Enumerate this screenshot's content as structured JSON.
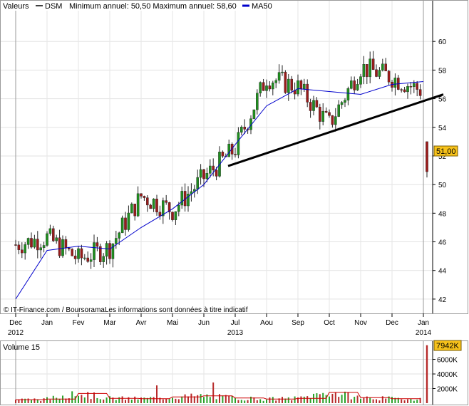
{
  "header": {
    "valeurs_label": "Valeurs",
    "symbol": "DSM",
    "range_text": "Minimum annuel: 50,50 Maximum annuel: 58,60",
    "ma_label": "MA50"
  },
  "footer": {
    "credit": "© IT-Finance.com / BoursoramaLes informations sont données à titre indicatif"
  },
  "colors": {
    "up": "#1f8f1f",
    "down": "#9b1b1b",
    "ma": "#0000cc",
    "trendline": "#000000",
    "last_price_bg": "#f7c21b",
    "volume_green": "#2aa22a",
    "volume_red": "#b72a2a",
    "volume_ma": "#cc0000"
  },
  "chart_data": [
    {
      "type": "line",
      "name": "price",
      "title": "",
      "xlabel": "",
      "ylabel": "",
      "ylim": [
        41,
        62
      ],
      "yticks": [
        "42",
        "44",
        "46",
        "48",
        "50",
        "52",
        "54",
        "56",
        "58",
        "60"
      ],
      "month_labels": [
        "Dec",
        "Jan",
        "Fev",
        "Mar",
        "Avr",
        "Mai",
        "Jun",
        "Jul",
        "Aou",
        "Sep",
        "Oct",
        "Nov",
        "Dec",
        "Jan"
      ],
      "year_labels": [
        "2012",
        "2013",
        "2014"
      ],
      "x": [
        "Dec 2012",
        "Jan 2013",
        "Fev 2013",
        "Mar 2013",
        "Avr 2013",
        "Mai 2013",
        "Jun 2013",
        "Jul 2013",
        "Aou 2013",
        "Sep 2013",
        "Oct 2013",
        "Nov 2013",
        "Dec 2013",
        "Jan 2014"
      ],
      "series": [
        {
          "name": "DSM",
          "values": [
            45.8,
            46.3,
            44.8,
            45.6,
            49.2,
            48.2,
            50.5,
            52.5,
            57.5,
            56.8,
            54.2,
            58.2,
            57.5,
            56.5
          ]
        },
        {
          "name": "MA50",
          "values": [
            42.0,
            45.4,
            45.7,
            45.5,
            47.0,
            48.3,
            50.0,
            52.8,
            55.5,
            56.7,
            56.5,
            56.3,
            57.0,
            57.2
          ]
        }
      ],
      "trendline": {
        "from": [
          "Jul 2013",
          51.3
        ],
        "to": [
          "Jan 2014",
          56.3
        ]
      },
      "last_gap": {
        "open": 53.0,
        "close": 50.9
      },
      "last_price_label": "51,00",
      "grid": true,
      "legend": "top-left"
    },
    {
      "type": "bar",
      "name": "volume",
      "title": "Volume 15",
      "yticks": [
        "2000K",
        "4000K",
        "6000K"
      ],
      "last_volume_label": "7942K",
      "ylim": [
        0,
        8200
      ],
      "x": [
        "Dec 2012",
        "Jan 2013",
        "Fev 2013",
        "Mar 2013",
        "Avr 2013",
        "Mai 2013",
        "Jun 2013",
        "Jul 2013",
        "Aou 2013",
        "Sep 2013",
        "Oct 2013",
        "Nov 2013",
        "Dec 2013",
        "Jan 2014"
      ],
      "values": [
        500,
        600,
        1400,
        700,
        650,
        900,
        1050,
        750,
        600,
        700,
        1550,
        800,
        650,
        7942
      ]
    }
  ]
}
